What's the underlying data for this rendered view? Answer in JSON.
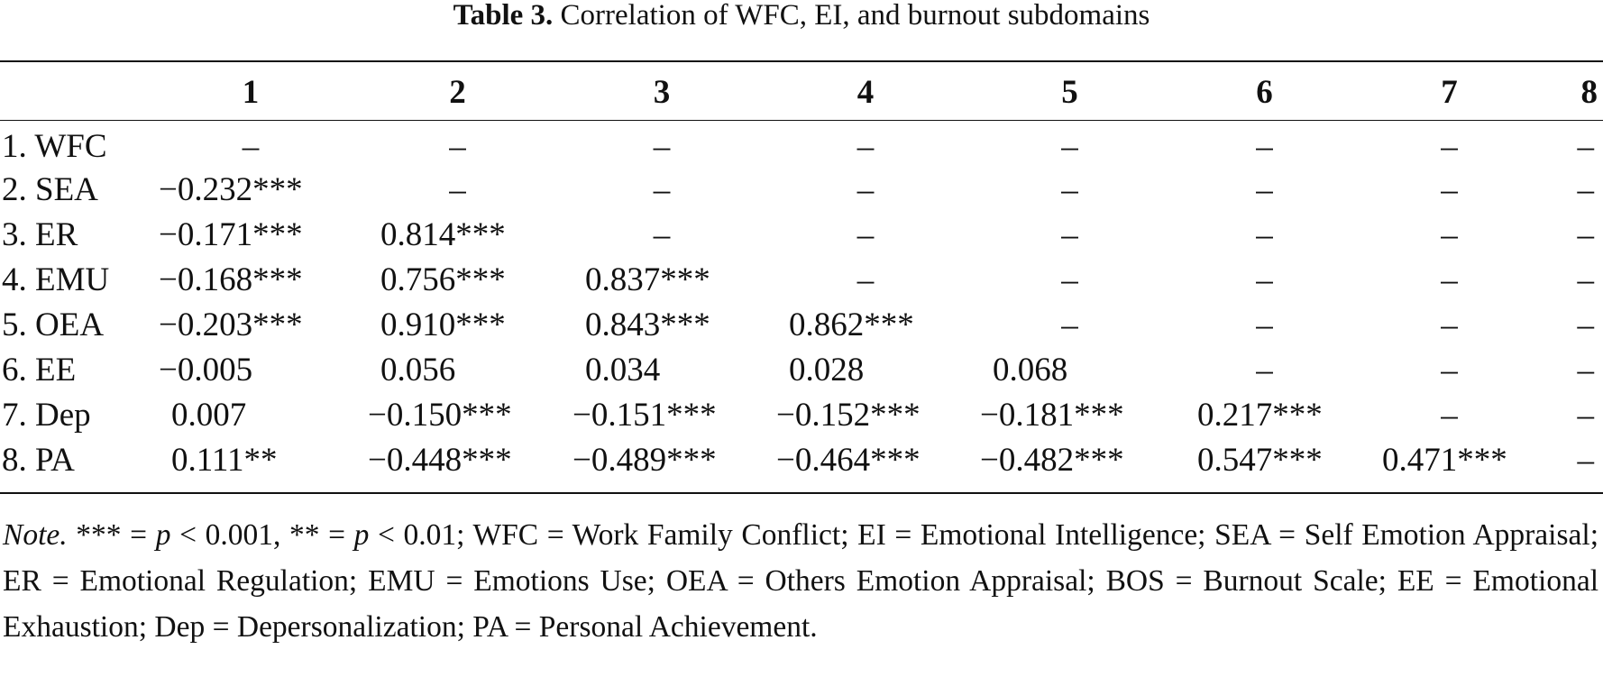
{
  "caption": {
    "label": "Table 3.",
    "title": "Correlation of WFC, EI, and burnout subdomains"
  },
  "table": {
    "columns": [
      "1",
      "2",
      "3",
      "4",
      "5",
      "6",
      "7",
      "8"
    ],
    "rows": [
      {
        "label": "1. WFC",
        "cells": [
          "–",
          "–",
          "–",
          "–",
          "–",
          "–",
          "–",
          "–"
        ]
      },
      {
        "label": "2. SEA",
        "cells": [
          "−0.232***",
          "–",
          "–",
          "–",
          "–",
          "–",
          "–",
          "–"
        ]
      },
      {
        "label": "3. ER",
        "cells": [
          "−0.171***",
          "0.814***",
          "–",
          "–",
          "–",
          "–",
          "–",
          "–"
        ]
      },
      {
        "label": "4. EMU",
        "cells": [
          "−0.168***",
          "0.756***",
          "0.837***",
          "–",
          "–",
          "–",
          "–",
          "–"
        ]
      },
      {
        "label": "5. OEA",
        "cells": [
          "−0.203***",
          "0.910***",
          "0.843***",
          "0.862***",
          "–",
          "–",
          "–",
          "–"
        ]
      },
      {
        "label": "6. EE",
        "cells": [
          "−0.005",
          "0.056",
          "0.034",
          "0.028",
          "0.068",
          "–",
          "–",
          "–"
        ]
      },
      {
        "label": "7. Dep",
        "cells": [
          "0.007",
          "−0.150***",
          "−0.151***",
          "−0.152***",
          "−0.181***",
          "0.217***",
          "–",
          "–"
        ]
      },
      {
        "label": "8. PA",
        "cells": [
          "0.111**",
          "−0.448***",
          "−0.489***",
          "−0.464***",
          "−0.482***",
          "0.547***",
          "0.471***",
          "–"
        ]
      }
    ]
  },
  "note": {
    "label": "Note.",
    "sig1_stars": "*** = ",
    "sig1_p": "p",
    "sig1_rest": " < 0.001, ",
    "sig2_stars": "** = ",
    "sig2_p": "p",
    "sig2_rest": " < 0.01; ",
    "abbreviations": "WFC = Work Family Conflict; EI = Emotional Intelligence; SEA = Self Emotion Appraisal; ER = Emotional Regulation; EMU = Emotions Use; OEA = Others Emotion Appraisal; BOS = Burnout Scale; EE = Emotional Exhaustion; Dep = Depersonalization; PA = Personal Achievement."
  }
}
